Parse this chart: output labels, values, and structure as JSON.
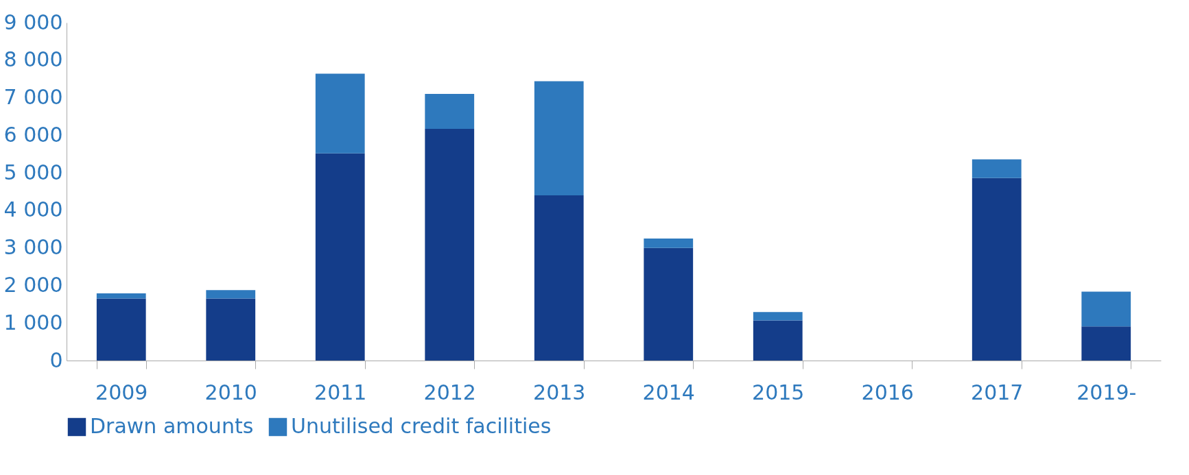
{
  "chart_data": {
    "type": "bar",
    "stacked": true,
    "categories": [
      "2009",
      "2010",
      "2011",
      "2012",
      "2013",
      "2014",
      "2015",
      "2016",
      "2017",
      "2019-"
    ],
    "series": [
      {
        "name": "Drawn amounts",
        "color": "#143d8a",
        "values": [
          1650,
          1650,
          5520,
          6170,
          4400,
          3000,
          1070,
          0,
          4860,
          910
        ]
      },
      {
        "name": "Unutilised credit facilities",
        "color": "#2e79bd",
        "values": [
          140,
          225,
          2120,
          930,
          3040,
          250,
          220,
          0,
          500,
          925
        ]
      }
    ],
    "ylim": [
      0,
      9000
    ],
    "yticks": [
      {
        "value": 0,
        "label": "0"
      },
      {
        "value": 1000,
        "label": "1 000"
      },
      {
        "value": 2000,
        "label": "2 000"
      },
      {
        "value": 3000,
        "label": "3 000"
      },
      {
        "value": 4000,
        "label": "4 000"
      },
      {
        "value": 5000,
        "label": "5 000"
      },
      {
        "value": 6000,
        "label": "6 000"
      },
      {
        "value": 7000,
        "label": "7 000"
      },
      {
        "value": 8000,
        "label": "8 000"
      },
      {
        "value": 9000,
        "label": "9 000"
      }
    ],
    "grid": false,
    "legend": "bottom"
  }
}
